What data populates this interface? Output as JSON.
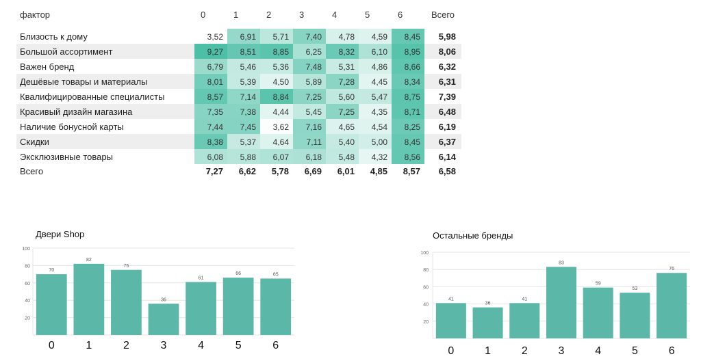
{
  "heatmap": {
    "header_factor": "фактор",
    "columns": [
      "0",
      "1",
      "2",
      "3",
      "4",
      "5",
      "6"
    ],
    "header_total": "Всего",
    "footer_label": "Всего",
    "rows": [
      {
        "label": "Близость к дому",
        "values": [
          "3,52",
          "6,91",
          "5,71",
          "7,40",
          "4,78",
          "4,59",
          "8,45"
        ],
        "total": "5,98"
      },
      {
        "label": "Большой ассортимент",
        "values": [
          "9,27",
          "8,51",
          "8,85",
          "6,25",
          "8,32",
          "6,10",
          "8,95"
        ],
        "total": "8,06"
      },
      {
        "label": "Важен бренд",
        "values": [
          "6,79",
          "5,46",
          "5,36",
          "7,48",
          "5,31",
          "4,86",
          "8,66"
        ],
        "total": "6,32"
      },
      {
        "label": "Дешёвые товары и материалы",
        "values": [
          "8,01",
          "5,39",
          "4,50",
          "5,89",
          "7,28",
          "4,45",
          "8,34"
        ],
        "total": "6,31"
      },
      {
        "label": "Квалифицированные специалисты",
        "values": [
          "8,57",
          "7,14",
          "8,84",
          "7,25",
          "5,60",
          "5,47",
          "8,75"
        ],
        "total": "7,39"
      },
      {
        "label": "Красивый дизайн магазина",
        "values": [
          "7,35",
          "7,38",
          "4,44",
          "5,45",
          "7,25",
          "4,35",
          "8,71"
        ],
        "total": "6,48"
      },
      {
        "label": "Наличие бонусной карты",
        "values": [
          "7,44",
          "7,45",
          "3,62",
          "7,16",
          "4,65",
          "4,54",
          "8,25"
        ],
        "total": "6,19"
      },
      {
        "label": "Скидки",
        "values": [
          "8,38",
          "5,37",
          "4,64",
          "7,11",
          "5,40",
          "5,00",
          "8,45"
        ],
        "total": "6,37"
      },
      {
        "label": "Эксклюзивные товары",
        "values": [
          "6,08",
          "5,88",
          "6,07",
          "6,18",
          "5,48",
          "4,32",
          "8,56"
        ],
        "total": "6,14"
      }
    ],
    "column_totals": [
      "7,27",
      "6,62",
      "5,78",
      "6,69",
      "6,01",
      "4,85",
      "8,57"
    ],
    "grand_total": "6,58",
    "colors": {
      "low": "#ffffff",
      "high": "#4dbfa6",
      "stripe": "#eeeeee"
    }
  },
  "chart_data": [
    {
      "type": "bar",
      "title": "Двери Shop",
      "categories": [
        "0",
        "1",
        "2",
        "3",
        "4",
        "5",
        "6"
      ],
      "values": [
        70,
        82,
        75,
        36,
        61,
        66,
        65
      ],
      "ylim": [
        0,
        100
      ],
      "yticks": [
        20,
        40,
        60,
        80,
        100
      ],
      "grid": true,
      "color": "#5bb8a8"
    },
    {
      "type": "bar",
      "title": "Остальные бренды",
      "categories": [
        "0",
        "1",
        "2",
        "3",
        "4",
        "5",
        "6"
      ],
      "values": [
        41,
        36,
        41,
        83,
        59,
        53,
        76
      ],
      "ylim": [
        0,
        100
      ],
      "yticks": [
        20,
        40,
        60,
        80,
        100
      ],
      "grid": true,
      "color": "#5bb8a8"
    }
  ]
}
